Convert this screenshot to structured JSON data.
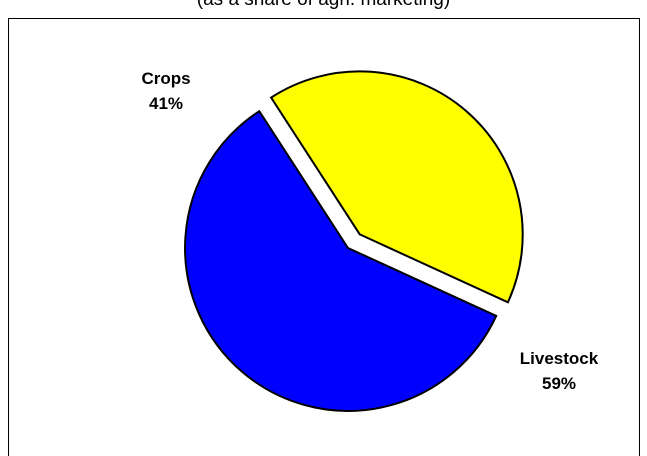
{
  "subtitle": "(as a share of agri. marketing)",
  "chart_data": {
    "type": "pie",
    "title": "",
    "subtitle": "(as a share of agri. marketing)",
    "slices": [
      {
        "label": "Crops",
        "value": 41,
        "value_label": "41%",
        "color": "#FFFF00",
        "exploded": true
      },
      {
        "label": "Livestock",
        "value": 59,
        "value_label": "59%",
        "color": "#0000FF",
        "exploded": false
      }
    ],
    "legend": "none"
  }
}
